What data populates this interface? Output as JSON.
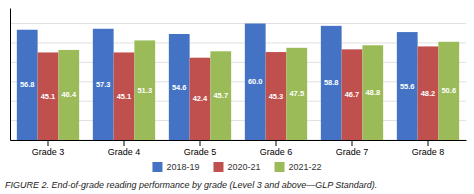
{
  "chart_data": {
    "type": "bar",
    "caption": "FIGURE 2. End-of-grade reading performance by grade (Level 3 and above—GLP Standard).",
    "categories": [
      "Grade 3",
      "Grade 4",
      "Grade 5",
      "Grade 6",
      "Grade 7",
      "Grade 8"
    ],
    "series": [
      {
        "name": "2018-19",
        "color": "#4472C4",
        "values": [
          56.8,
          57.3,
          54.6,
          60.0,
          58.8,
          55.6
        ],
        "value_labels": [
          "56.8",
          "57.3",
          "54.6",
          "60.0",
          "58.8",
          "55.6"
        ]
      },
      {
        "name": "2020-21",
        "color": "#C0504D",
        "values": [
          45.1,
          45.1,
          42.4,
          45.3,
          46.7,
          48.2
        ],
        "value_labels": [
          "45.1",
          "45.1",
          "42.4",
          "45.3",
          "46.7",
          "48.2"
        ]
      },
      {
        "name": "2021-22",
        "color": "#9BBB59",
        "values": [
          46.4,
          51.3,
          45.7,
          47.5,
          48.8,
          50.6
        ],
        "value_labels": [
          "46.4",
          "51.3",
          "45.7",
          "47.5",
          "48.8",
          "50.6"
        ]
      }
    ],
    "ylim": [
      0,
      68
    ],
    "yticks": [
      0,
      10,
      20,
      30,
      40,
      50,
      60
    ],
    "grid": true,
    "legend": "bottom",
    "data_labels": true,
    "tick_labels": "x"
  }
}
